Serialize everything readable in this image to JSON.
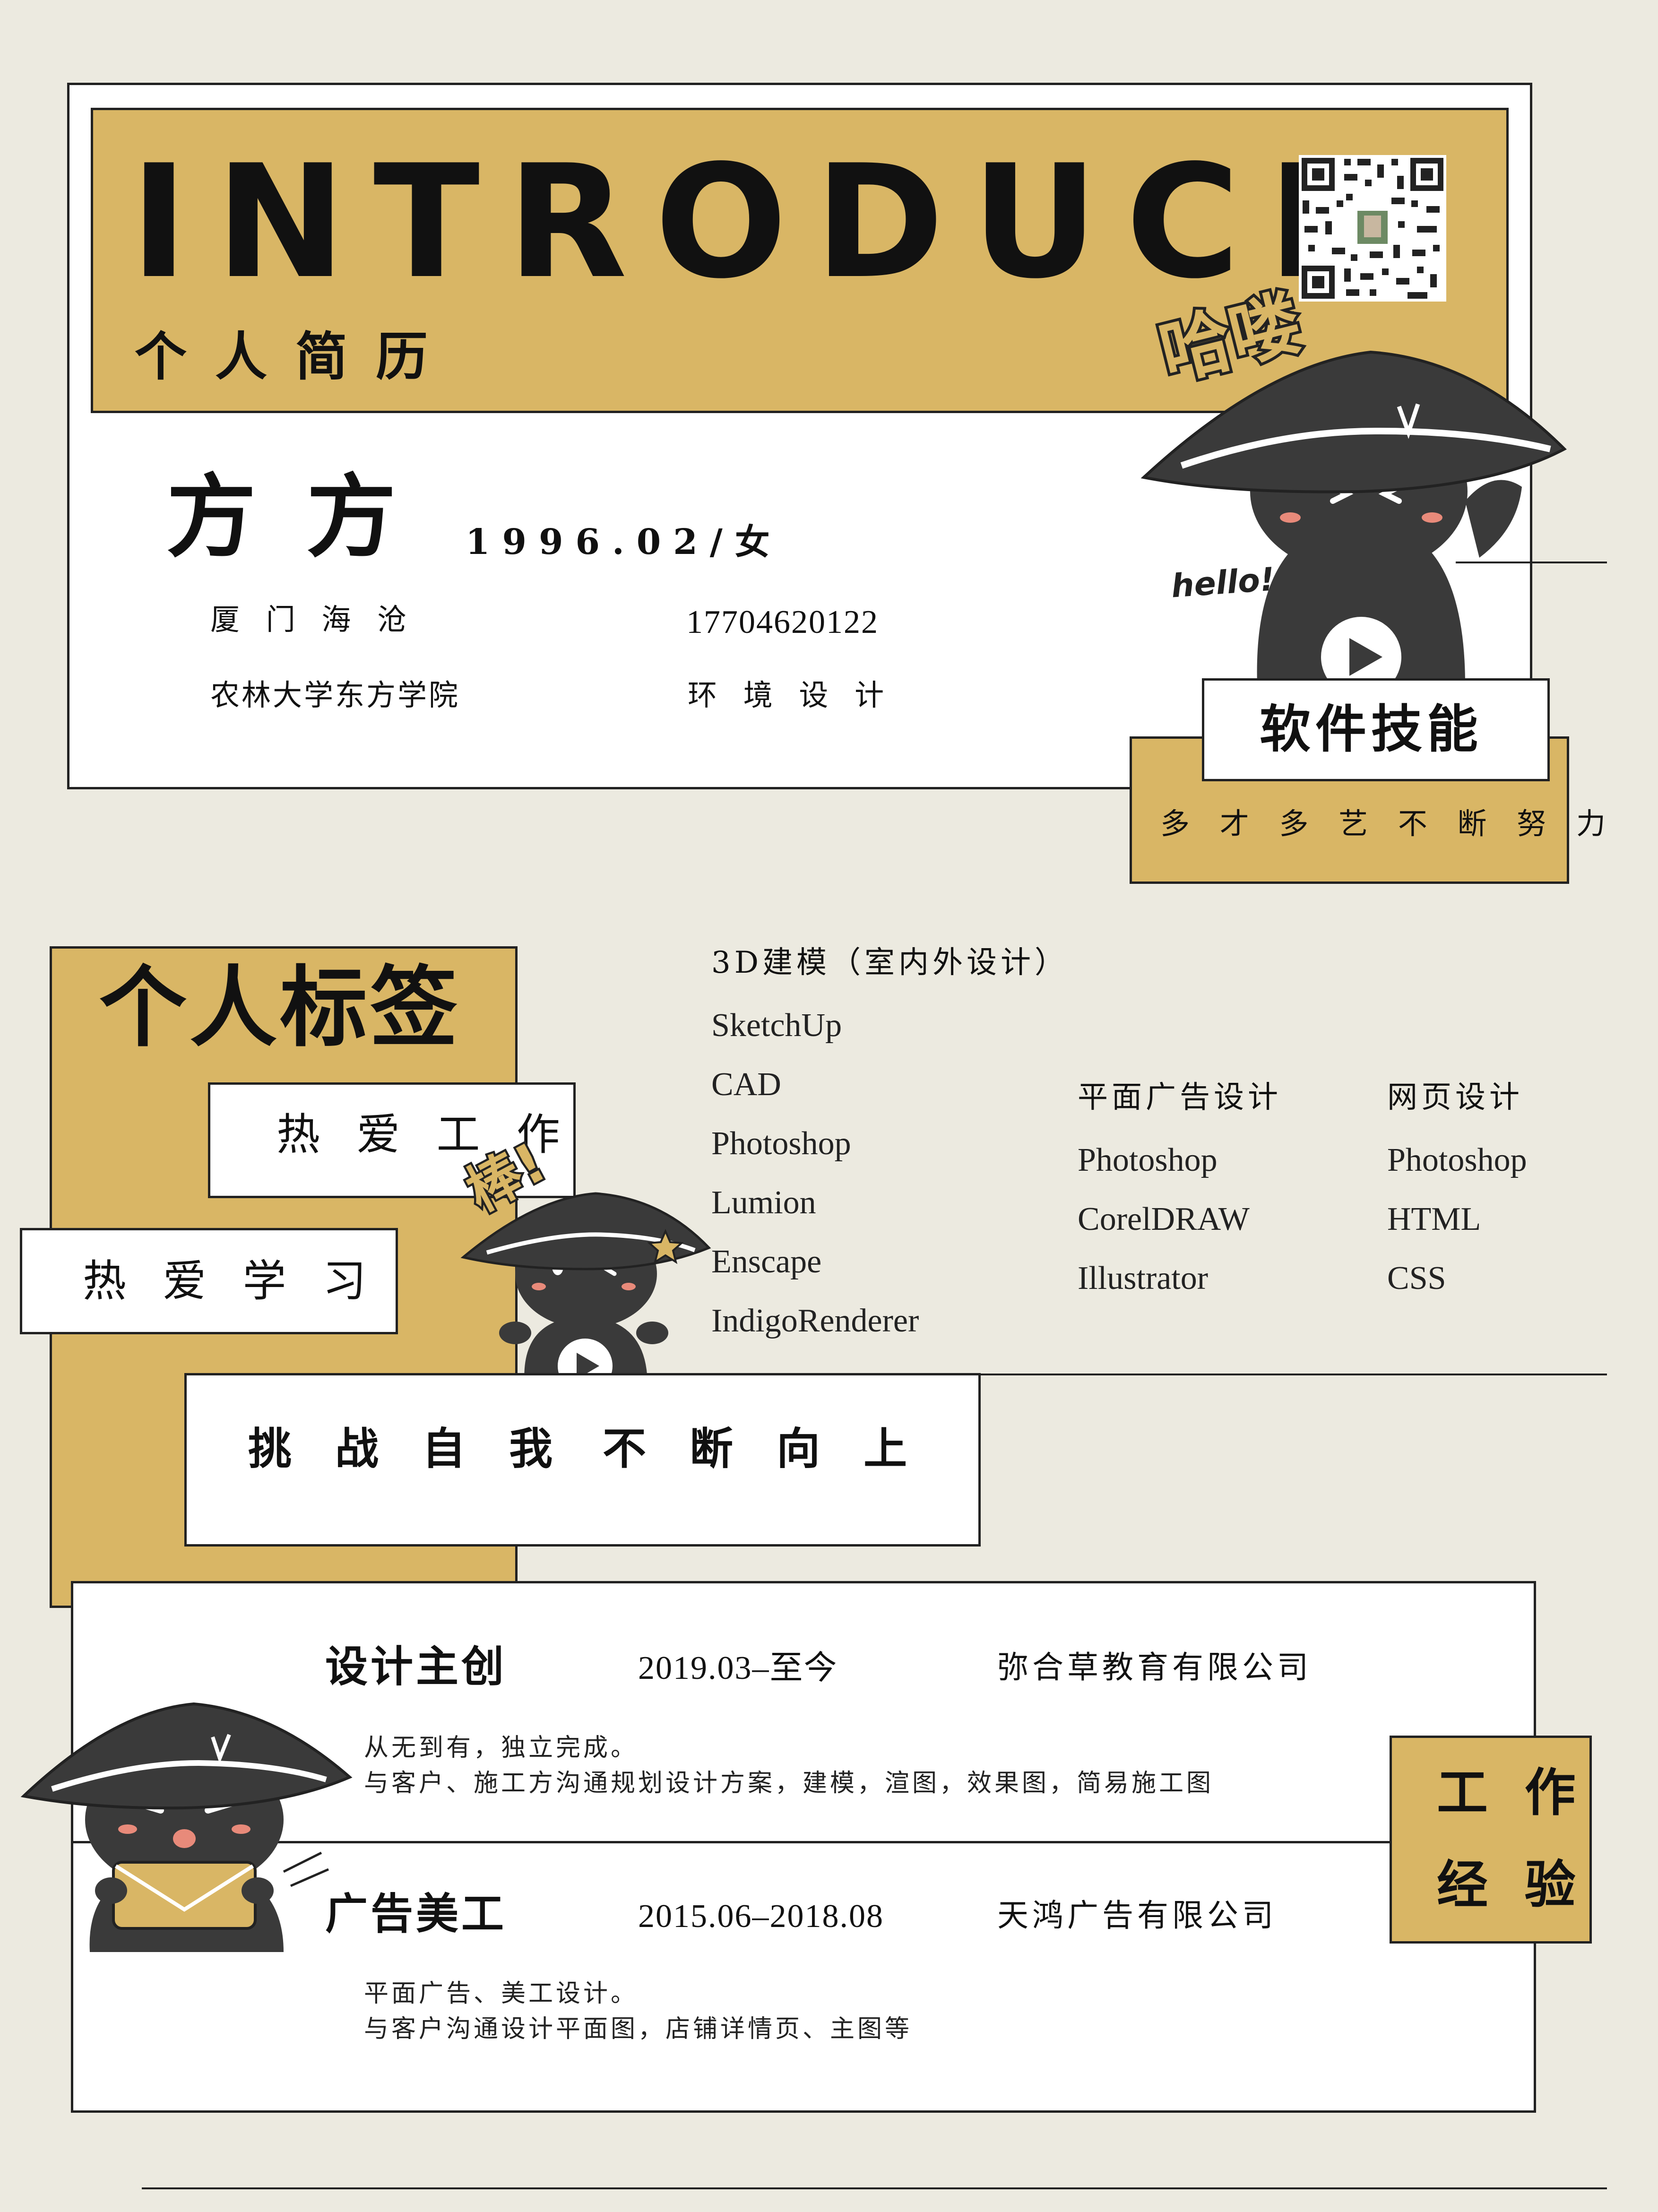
{
  "header": {
    "title": "INTRODUCE",
    "subtitle": "个人简历",
    "greeting": "哈喽",
    "hello": "hello!"
  },
  "profile": {
    "name": "方 方",
    "birth_gender": "1996.02/女",
    "location": "厦 门 海 沧",
    "phone": "17704620122",
    "school": "农林大学东方学院",
    "major": "环 境 设 计"
  },
  "skills_header": {
    "title": "软件技能",
    "slogan": "多 才 多 艺 不 断 努 力"
  },
  "tags": {
    "title": "个人标签",
    "tag1": "热 爱 工 作",
    "tag2": "热 爱 学 习",
    "bang": "棒!",
    "motto_1": "挑 战 自 我",
    "motto_2": "不 断 向 上"
  },
  "skills": {
    "col1_title": "3D建模（室内外设计）",
    "col1": [
      "SketchUp",
      "CAD",
      "Photoshop",
      "Lumion",
      "Enscape",
      "IndigoRenderer"
    ],
    "col2_title": "平面广告设计",
    "col2": [
      "Photoshop",
      "CorelDRAW",
      "Illustrator"
    ],
    "col3_title": "网页设计",
    "col3": [
      "Photoshop",
      "HTML",
      "CSS"
    ]
  },
  "experience": {
    "title_1": "工 作",
    "title_2": "经 验",
    "jobs": [
      {
        "role": "设计主创",
        "period": "2019.03–至今",
        "company": "弥合草教育有限公司",
        "line1": "从无到有，独立完成。",
        "line2": "与客户、施工方沟通规划设计方案，建模，渲图，效果图，简易施工图"
      },
      {
        "role": "广告美工",
        "period": "2015.06–2018.08",
        "company": "天鸿广告有限公司",
        "line1": "平面广告、美工设计。",
        "line2": "与客户沟通设计平面图，店铺详情页、主图等"
      }
    ]
  },
  "colors": {
    "background": "#eceae0",
    "gold": "#d9b665",
    "ink": "#222222",
    "white": "#ffffff"
  },
  "icons": [
    "qr-code-icon",
    "mascot-wave-icon",
    "mascot-wink-icon",
    "mascot-envelope-icon"
  ]
}
